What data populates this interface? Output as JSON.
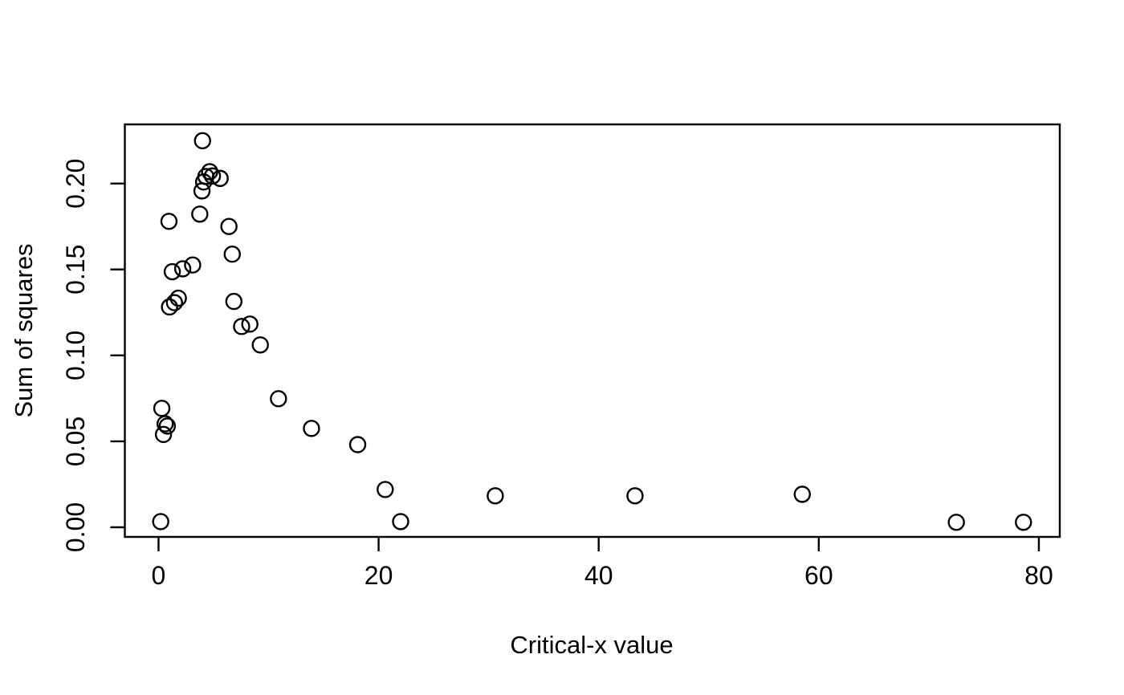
{
  "figure": {
    "background": "#ffffff",
    "axis_color": "#000000",
    "marker_color": "#000000",
    "text_color": "#000000"
  },
  "chart_data": {
    "type": "scatter",
    "title": "",
    "xlabel": "Critical-x value",
    "ylabel": "Sum of squares",
    "marker": "open-circle",
    "grid": false,
    "legend": null,
    "xlim": [
      -3.06,
      81.9
    ],
    "ylim": [
      -0.0056,
      0.2344
    ],
    "x_ticks": [
      0,
      20,
      40,
      60,
      80
    ],
    "x_tick_labels": [
      "0",
      "20",
      "40",
      "60",
      "80"
    ],
    "y_ticks": [
      0.0,
      0.05,
      0.1,
      0.15,
      0.2
    ],
    "y_tick_labels": [
      "0.00",
      "0.05",
      "0.10",
      "0.15",
      "0.20"
    ],
    "points": [
      [
        0.2,
        0.0033
      ],
      [
        0.3,
        0.0692
      ],
      [
        0.45,
        0.054
      ],
      [
        0.6,
        0.0602
      ],
      [
        0.8,
        0.0589
      ],
      [
        0.95,
        0.178
      ],
      [
        1.0,
        0.1282
      ],
      [
        1.25,
        0.1487
      ],
      [
        1.45,
        0.1307
      ],
      [
        1.8,
        0.1333
      ],
      [
        2.2,
        0.1504
      ],
      [
        3.1,
        0.1526
      ],
      [
        3.75,
        0.1822
      ],
      [
        3.95,
        0.1957
      ],
      [
        4.0,
        0.2249
      ],
      [
        4.1,
        0.2009
      ],
      [
        4.3,
        0.2041
      ],
      [
        4.65,
        0.2069
      ],
      [
        4.9,
        0.2044
      ],
      [
        5.6,
        0.203
      ],
      [
        6.4,
        0.175
      ],
      [
        6.7,
        0.1589
      ],
      [
        6.85,
        0.1314
      ],
      [
        7.55,
        0.1168
      ],
      [
        8.3,
        0.1182
      ],
      [
        9.25,
        0.1061
      ],
      [
        10.9,
        0.0748
      ],
      [
        13.9,
        0.0575
      ],
      [
        18.1,
        0.0481
      ],
      [
        20.6,
        0.022
      ],
      [
        22.0,
        0.0033
      ],
      [
        30.6,
        0.0183
      ],
      [
        43.3,
        0.0183
      ],
      [
        58.5,
        0.0192
      ],
      [
        72.5,
        0.0029
      ],
      [
        78.6,
        0.0029
      ]
    ]
  }
}
